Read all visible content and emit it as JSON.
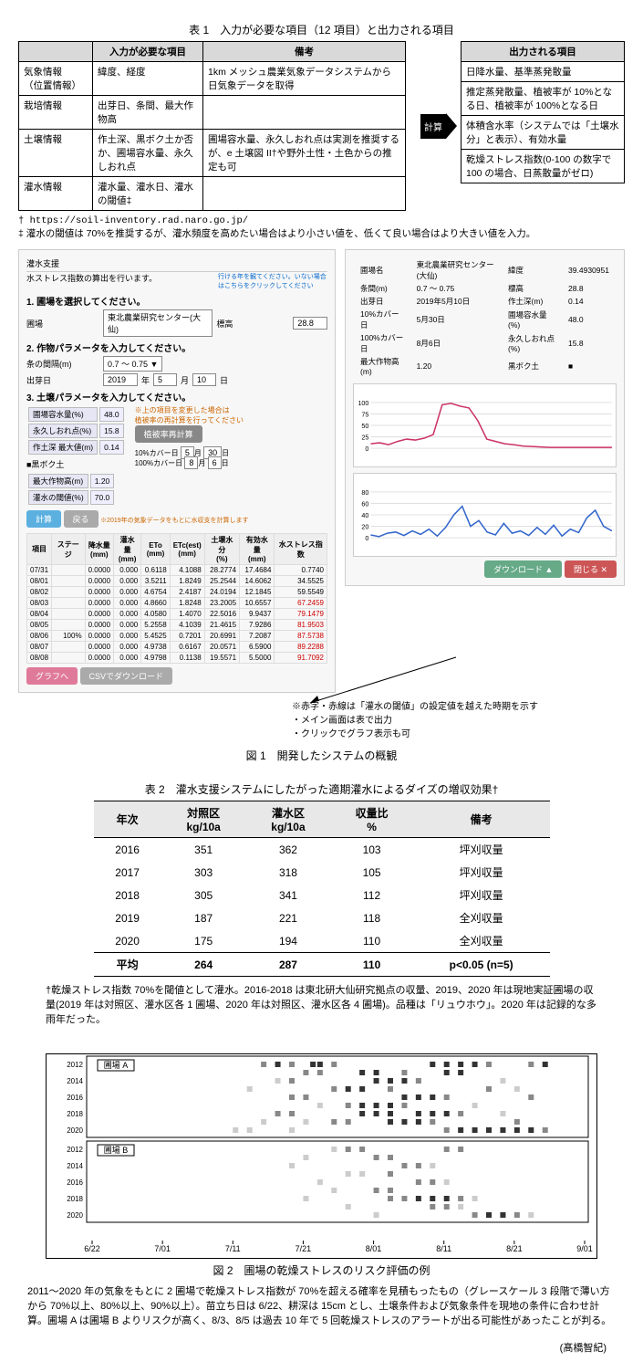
{
  "table1": {
    "caption": "表 1　入力が必要な項目（12 項目）と出力される項目",
    "header_left_c1": "",
    "header_left_c2": "入力が必要な項目",
    "header_left_c3": "備考",
    "header_right": "出力される項目",
    "arrow_label": "計算",
    "rows": [
      {
        "cat": "気象情報\n（位置情報）",
        "inp": "緯度、経度",
        "note": "1km メッシュ農業気象データシステムから日気象データを取得",
        "out": "日降水量、基準蒸発散量"
      },
      {
        "cat": "栽培情報",
        "inp": "出芽日、条間、最大作物高",
        "note": "",
        "out": "推定蒸発散量、植被率が 10%となる日、植被率が 100%となる日"
      },
      {
        "cat": "土壌情報",
        "inp": "作土深、黒ボク土か否か、圃場容水量、永久しおれ点",
        "note": "圃場容水量、永久しおれ点は実測を推奨するが、e 土壌図 II†や野外土性・土色からの推定も可",
        "out": "体積含水率（システムでは「土壌水分」と表示）、有効水量"
      },
      {
        "cat": "灌水情報",
        "inp": "灌水量、灌水日、灌水の閾値‡",
        "note": "",
        "out": "乾燥ストレス指数(0-100 の数字で 100 の場合、日蒸散量がゼロ)"
      }
    ],
    "footnote1": "† https://soil-inventory.rad.naro.go.jp/",
    "footnote2": "‡ 灌水の閾値は 70%を推奨するが、灌水頻度を高めたい場合はより小さい値を、低くて良い場合はより大きい値を入力。"
  },
  "fig1": {
    "caption": "図 1　開発したシステムの概観",
    "tab_label": "灌水支援",
    "intro_text": "水ストレス指数の算出を行います。",
    "note_right_top": "行ける年を観てください。いない場合はこちらをクリックしてください",
    "h1": "1. 圃場を選択してください。",
    "h2": "2. 作物パラメータを入力してください。",
    "h3": "3. 土壌パラメータを入力してください。",
    "labels": {
      "field": "圃場",
      "field_val": "東北農業研究センター(大仙)",
      "std": "標高",
      "std_val": "28.8",
      "row_spacing": "条の間隔(m)",
      "row_spacing_val": "0.7 ～ 0.75 ▼",
      "sprout": "出芽日",
      "sprout_y": "2019",
      "sprout_m": "5",
      "sprout_d": "10",
      "field_cap": "圃場容水量(%)",
      "field_cap_val": "48.0",
      "wilt": "永久しおれ点(%)",
      "wilt_val": "15.8",
      "depth": "作土深 最大値(m)",
      "depth_val": "0.14",
      "kuroboku": "■黒ボク土",
      "plow": "最大作物高(m)",
      "plow_val": "1.20",
      "thresh": "灌水の閾値(%)",
      "thresh_val": "70.0",
      "cover10": "10%カバー日",
      "cover10_val_m": "5",
      "cover10_val_d": "30",
      "cover100": "100%カバー日",
      "cover100_val_m": "8",
      "cover100_val_d": "6",
      "recalc_note": "※上の項目を変更した場合は\n植被率の再計算を行ってください",
      "recalc_btn": "植被率再計算",
      "note_bottom": "※2019年の気象データをもとに水収支を計算します",
      "calc_btn": "計算",
      "reset_btn": "戻る",
      "graph_btn": "グラフへ",
      "csv_btn": "CSVでダウンロード"
    },
    "result_headers": [
      "項目",
      "ステージ",
      "降水量\n(mm)",
      "灌水量\n(mm)",
      "ETo\n(mm)",
      "ETc(est)\n(mm)",
      "土壌水分\n(%)",
      "有効水量\n(mm)",
      "水ストレス指数"
    ],
    "result_rows": [
      [
        "07/31",
        "",
        "0.0000",
        "0.000",
        "0.6118",
        "4.1088",
        "28.2774",
        "17.4684",
        "0.7740"
      ],
      [
        "08/01",
        "",
        "0.0000",
        "0.000",
        "3.5211",
        "1.8249",
        "25.2544",
        "14.6062",
        "34.5525"
      ],
      [
        "08/02",
        "",
        "0.0000",
        "0.000",
        "4.6754",
        "2.4187",
        "24.0194",
        "12.1845",
        "59.5549"
      ],
      [
        "08/03",
        "",
        "0.0000",
        "0.000",
        "4.8660",
        "1.8248",
        "23.2005",
        "10.6557",
        "67.2459"
      ],
      [
        "08/04",
        "",
        "0.0000",
        "0.000",
        "4.0580",
        "1.4070",
        "22.5016",
        "9.9437",
        "79.1479"
      ],
      [
        "08/05",
        "",
        "0.0000",
        "0.000",
        "5.2558",
        "4.1039",
        "21.4615",
        "7.9286",
        "81.9503"
      ],
      [
        "08/06",
        "100%",
        "0.0000",
        "0.000",
        "5.4525",
        "0.7201",
        "20.6991",
        "7.2087",
        "87.5738"
      ],
      [
        "08/07",
        "",
        "0.0000",
        "0.000",
        "4.9738",
        "0.6167",
        "20.0571",
        "6.5900",
        "89.2288"
      ],
      [
        "08/08",
        "",
        "0.0000",
        "0.000",
        "4.9798",
        "0.1138",
        "19.5571",
        "5.5000",
        "91.7092"
      ]
    ],
    "red_threshold_row_index": 3,
    "right_meta": [
      [
        "圃場名",
        "東北農業研究センター(大仙)"
      ],
      [
        "緯度",
        "39.4930951"
      ],
      [
        "条間(m)",
        "0.7 ～ 0.75"
      ],
      [
        "標高",
        "28.8"
      ],
      [
        "出芽日",
        "2019年5月10日"
      ],
      [
        "作土深(m)",
        "0.14"
      ],
      [
        "10%カバー日",
        "5月30日"
      ],
      [
        "圃場容水量(%)",
        "48.0"
      ],
      [
        "100%カバー日",
        "8月6日"
      ],
      [
        "永久しおれ点(%)",
        "15.8"
      ],
      [
        "最大作物高(m)",
        "1.20"
      ],
      [
        "黒ボク土",
        "■"
      ]
    ],
    "right_btn_dl": "ダウンロード ▲",
    "right_btn_close": "閉じる ✕",
    "chart_top": {
      "color": "#cc3366",
      "ylim": [
        0,
        100
      ],
      "points": [
        10,
        12,
        8,
        15,
        20,
        18,
        22,
        30,
        95,
        98,
        92,
        88,
        60,
        20,
        15,
        10,
        8,
        5,
        4,
        3,
        2,
        2,
        2,
        2,
        2,
        2,
        2,
        2
      ]
    },
    "chart_bottom": {
      "color": "#3366cc",
      "ylim": [
        0,
        80
      ],
      "points": [
        5,
        2,
        8,
        10,
        4,
        12,
        6,
        15,
        3,
        18,
        40,
        55,
        20,
        30,
        10,
        5,
        25,
        8,
        12,
        4,
        18,
        6,
        22,
        3,
        15,
        9,
        35,
        48,
        20,
        12
      ]
    },
    "annotations": [
      "※赤字・赤線は「灌水の閾値」の設定値を越えた時期を示す",
      "・メイン画面は表で出力",
      "・クリックでグラフ表示も可"
    ]
  },
  "table2": {
    "caption": "表 2　灌水支援システムにしたがった適期灌水によるダイズの増収効果†",
    "headers": [
      "年次",
      "対照区\nkg/10a",
      "灌水区\nkg/10a",
      "収量比\n%",
      "備考"
    ],
    "rows": [
      [
        "2016",
        "351",
        "362",
        "103",
        "坪刈収量"
      ],
      [
        "2017",
        "303",
        "318",
        "105",
        "坪刈収量"
      ],
      [
        "2018",
        "305",
        "341",
        "112",
        "坪刈収量"
      ],
      [
        "2019",
        "187",
        "221",
        "118",
        "全刈収量"
      ],
      [
        "2020",
        "175",
        "194",
        "110",
        "全刈収量"
      ]
    ],
    "avg": [
      "平均",
      "264",
      "287",
      "110",
      "p<0.05 (n=5)"
    ],
    "note": "†乾燥ストレス指数 70%を閾値として灌水。2016-2018 は東北研大仙研究拠点の収量、2019、2020 年は現地実証圃場の収量(2019 年は対照区、灌水区各 1 圃場、2020 年は対照区、灌水区各 4 圃場)。品種は「リュウホウ」。2020 年は記録的な多雨年だった。"
  },
  "fig2": {
    "caption": "図 2　圃場の乾燥ストレスのリスク評価の例",
    "label_a": "圃場 A",
    "label_b": "圃場 B",
    "years": [
      "2012",
      "2014",
      "2016",
      "2018",
      "2020"
    ],
    "xaxis": [
      "6/22",
      "7/01",
      "7/11",
      "7/21",
      "8/01",
      "8/11",
      "8/21",
      "9/01"
    ],
    "colors": {
      "light": "#cccccc",
      "mid": "#888888",
      "dark": "#333333"
    },
    "data_a": {
      "2012": [
        [
          24,
          1
        ],
        [
          26,
          2
        ],
        [
          28,
          1
        ],
        [
          31,
          2
        ],
        [
          32,
          2
        ],
        [
          34,
          1
        ],
        [
          48,
          2
        ],
        [
          50,
          2
        ],
        [
          52,
          2
        ],
        [
          54,
          2
        ],
        [
          56,
          1
        ],
        [
          62,
          1
        ],
        [
          64,
          2
        ]
      ],
      "2013": [
        [
          30,
          1
        ],
        [
          32,
          1
        ],
        [
          38,
          2
        ],
        [
          40,
          2
        ],
        [
          44,
          1
        ],
        [
          50,
          2
        ],
        [
          52,
          2
        ]
      ],
      "2014": [
        [
          26,
          0
        ],
        [
          28,
          1
        ],
        [
          40,
          2
        ],
        [
          42,
          2
        ],
        [
          44,
          2
        ],
        [
          46,
          1
        ],
        [
          58,
          0
        ]
      ],
      "2015": [
        [
          22,
          0
        ],
        [
          34,
          1
        ],
        [
          36,
          2
        ],
        [
          38,
          2
        ],
        [
          42,
          1
        ],
        [
          56,
          1
        ],
        [
          60,
          0
        ]
      ],
      "2016": [
        [
          28,
          1
        ],
        [
          30,
          1
        ],
        [
          44,
          2
        ],
        [
          46,
          2
        ],
        [
          48,
          2
        ],
        [
          50,
          1
        ],
        [
          62,
          1
        ]
      ],
      "2017": [
        [
          32,
          0
        ],
        [
          36,
          1
        ],
        [
          38,
          2
        ],
        [
          40,
          2
        ],
        [
          42,
          2
        ],
        [
          44,
          1
        ],
        [
          54,
          0
        ]
      ],
      "2018": [
        [
          26,
          1
        ],
        [
          28,
          1
        ],
        [
          38,
          2
        ],
        [
          40,
          2
        ],
        [
          42,
          2
        ],
        [
          46,
          2
        ],
        [
          48,
          2
        ],
        [
          50,
          2
        ],
        [
          52,
          1
        ],
        [
          58,
          0
        ]
      ],
      "2019": [
        [
          24,
          0
        ],
        [
          30,
          0
        ],
        [
          34,
          1
        ],
        [
          36,
          1
        ],
        [
          42,
          2
        ],
        [
          44,
          2
        ],
        [
          46,
          2
        ],
        [
          48,
          1
        ],
        [
          60,
          1
        ]
      ],
      "2020": [
        [
          20,
          0
        ],
        [
          22,
          0
        ],
        [
          28,
          0
        ],
        [
          50,
          1
        ],
        [
          52,
          2
        ],
        [
          54,
          2
        ],
        [
          56,
          2
        ],
        [
          58,
          2
        ],
        [
          60,
          2
        ],
        [
          62,
          2
        ],
        [
          64,
          1
        ]
      ]
    },
    "data_b": {
      "2012": [
        [
          34,
          0
        ],
        [
          36,
          1
        ],
        [
          38,
          1
        ],
        [
          50,
          1
        ],
        [
          52,
          1
        ]
      ],
      "2013": [
        [
          30,
          0
        ],
        [
          40,
          1
        ],
        [
          42,
          1
        ]
      ],
      "2014": [
        [
          28,
          0
        ],
        [
          44,
          1
        ],
        [
          46,
          1
        ],
        [
          48,
          0
        ]
      ],
      "2015": [
        [
          36,
          0
        ],
        [
          38,
          0
        ],
        [
          42,
          1
        ]
      ],
      "2016": [
        [
          32,
          0
        ],
        [
          46,
          1
        ],
        [
          48,
          1
        ],
        [
          50,
          0
        ]
      ],
      "2017": [
        [
          34,
          0
        ],
        [
          40,
          1
        ],
        [
          42,
          1
        ]
      ],
      "2018": [
        [
          30,
          0
        ],
        [
          42,
          1
        ],
        [
          44,
          1
        ],
        [
          46,
          2
        ],
        [
          48,
          2
        ],
        [
          50,
          2
        ],
        [
          52,
          1
        ],
        [
          54,
          0
        ]
      ],
      "2019": [
        [
          36,
          0
        ],
        [
          48,
          1
        ],
        [
          50,
          1
        ],
        [
          52,
          0
        ]
      ],
      "2020": [
        [
          40,
          0
        ],
        [
          54,
          1
        ],
        [
          56,
          2
        ],
        [
          58,
          2
        ],
        [
          60,
          1
        ],
        [
          62,
          0
        ]
      ]
    },
    "note": "2011～2020 年の気象をもとに 2 圃場で乾燥ストレス指数が 70%を超える確率を見積もったもの（グレースケール 3 段階で薄い方から 70%以上、80%以上、90%以上）。苗立ち日は 6/22、耕深は 15cm とし、土壌条件および気象条件を現地の条件に合わせ計算。圃場 A は圃場 B よりリスクが高く、8/3、8/5 は過去 10 年で 5 回乾燥ストレスのアラートが出る可能性があったことが判る。"
  },
  "author": "(髙橋智紀)"
}
